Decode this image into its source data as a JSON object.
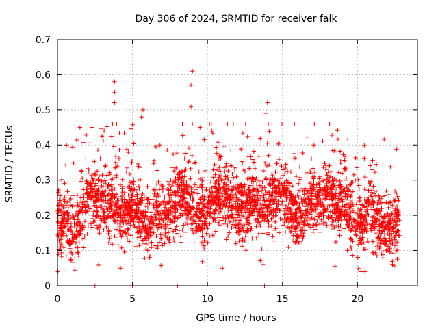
{
  "chart_data": {
    "type": "scatter",
    "title": "Day 306 of 2024, SRMTID for receiver falk",
    "xlabel": "GPS time / hours",
    "ylabel": "SRMTID / TECUs",
    "xlim": [
      0,
      24
    ],
    "ylim": [
      0,
      0.7
    ],
    "x_ticks": [
      0,
      5,
      10,
      15,
      20
    ],
    "x_tick_labels": [
      "0",
      "5",
      "10",
      "15",
      "20"
    ],
    "y_ticks": [
      0,
      0.1,
      0.2,
      0.3,
      0.4,
      0.5,
      0.6,
      0.7
    ],
    "y_tick_labels": [
      "0",
      "0.1",
      "0.2",
      "0.3",
      "0.4",
      "0.5",
      "0.6",
      "0.7"
    ],
    "grid": true,
    "marker": "+",
    "series_color": "#ff0000",
    "x_range_of_data": [
      0,
      22.8
    ],
    "mean_profile": {
      "x": [
        0,
        0.5,
        1,
        1.5,
        2,
        2.5,
        3,
        3.5,
        4,
        4.5,
        5,
        5.5,
        6,
        6.5,
        7,
        7.5,
        8,
        8.5,
        9,
        9.5,
        10,
        10.5,
        11,
        11.5,
        12,
        12.5,
        13,
        13.5,
        14,
        14.5,
        15,
        15.5,
        16,
        16.5,
        17,
        17.5,
        18,
        18.5,
        19,
        19.5,
        20,
        20.5,
        21,
        21.5,
        22,
        22.5,
        22.8
      ],
      "y": [
        0.17,
        0.19,
        0.15,
        0.18,
        0.25,
        0.26,
        0.24,
        0.25,
        0.21,
        0.19,
        0.24,
        0.2,
        0.17,
        0.2,
        0.19,
        0.2,
        0.26,
        0.24,
        0.23,
        0.2,
        0.22,
        0.24,
        0.26,
        0.25,
        0.23,
        0.21,
        0.25,
        0.22,
        0.24,
        0.25,
        0.26,
        0.23,
        0.19,
        0.21,
        0.25,
        0.24,
        0.27,
        0.22,
        0.24,
        0.22,
        0.17,
        0.19,
        0.21,
        0.17,
        0.16,
        0.18,
        0.19
      ]
    },
    "highlighted_points": [
      {
        "x": 3.8,
        "y": 0.58
      },
      {
        "x": 3.8,
        "y": 0.55
      },
      {
        "x": 3.8,
        "y": 0.52
      },
      {
        "x": 5.7,
        "y": 0.5
      },
      {
        "x": 5.6,
        "y": 0.48
      },
      {
        "x": 9.0,
        "y": 0.61
      },
      {
        "x": 8.9,
        "y": 0.57
      },
      {
        "x": 8.9,
        "y": 0.51
      },
      {
        "x": 14.0,
        "y": 0.52
      },
      {
        "x": 13.9,
        "y": 0.49
      },
      {
        "x": 15.8,
        "y": 0.46
      },
      {
        "x": 1.5,
        "y": 0.45
      },
      {
        "x": 2.3,
        "y": 0.45
      },
      {
        "x": 9.5,
        "y": 0.45
      },
      {
        "x": 10.3,
        "y": 0.44
      },
      {
        "x": 0.6,
        "y": 0.4
      },
      {
        "x": 17.1,
        "y": 0.4
      },
      {
        "x": 11.0,
        "y": 0.05
      },
      {
        "x": 4.2,
        "y": 0.05
      },
      {
        "x": 13.7,
        "y": 0.06
      },
      {
        "x": 20.0,
        "y": 0.0
      },
      {
        "x": 2.5,
        "y": 0.0
      },
      {
        "x": 4.9,
        "y": 0.0
      },
      {
        "x": 5.0,
        "y": 0.0
      },
      {
        "x": 8.0,
        "y": 0.0
      },
      {
        "x": 13.8,
        "y": 0.0
      }
    ]
  }
}
